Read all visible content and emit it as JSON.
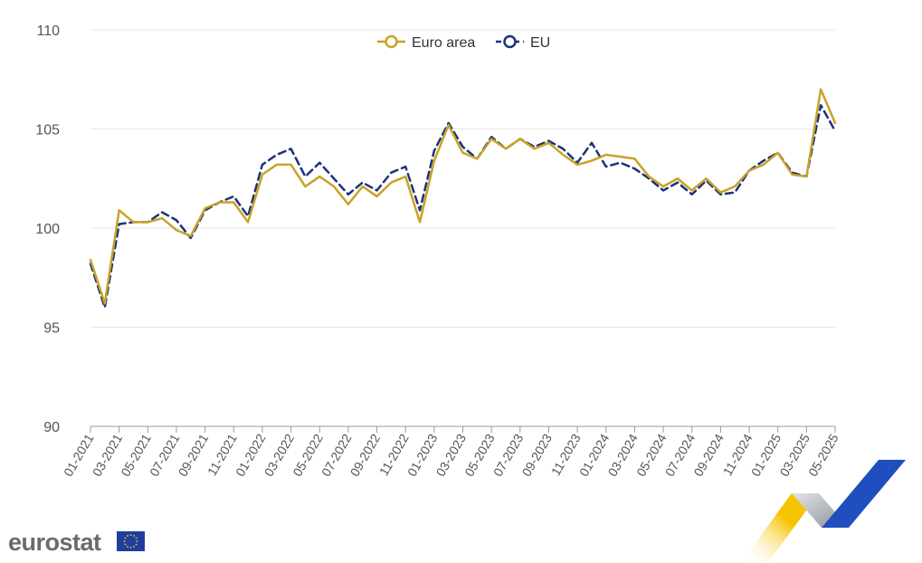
{
  "chart_data": {
    "type": "line",
    "x": [
      "01-2021",
      "02-2021",
      "03-2021",
      "04-2021",
      "05-2021",
      "06-2021",
      "07-2021",
      "08-2021",
      "09-2021",
      "10-2021",
      "11-2021",
      "12-2021",
      "01-2022",
      "02-2022",
      "03-2022",
      "04-2022",
      "05-2022",
      "06-2022",
      "07-2022",
      "08-2022",
      "09-2022",
      "10-2022",
      "11-2022",
      "12-2022",
      "01-2023",
      "02-2023",
      "03-2023",
      "04-2023",
      "05-2023",
      "06-2023",
      "07-2023",
      "08-2023",
      "09-2023",
      "10-2023",
      "11-2023",
      "12-2023",
      "01-2024",
      "02-2024",
      "03-2024",
      "04-2024",
      "05-2024",
      "06-2024",
      "07-2024",
      "08-2024",
      "09-2024",
      "10-2024",
      "11-2024",
      "12-2024",
      "01-2025",
      "02-2025",
      "03-2025",
      "04-2025",
      "05-2025"
    ],
    "x_tick_labels": [
      "01-2021",
      "03-2021",
      "05-2021",
      "07-2021",
      "09-2021",
      "11-2021",
      "01-2022",
      "03-2022",
      "05-2022",
      "07-2022",
      "09-2022",
      "11-2022",
      "01-2023",
      "03-2023",
      "05-2023",
      "07-2023",
      "09-2023",
      "11-2023",
      "01-2024",
      "03-2024",
      "05-2024",
      "07-2024",
      "09-2024",
      "11-2024",
      "01-2025",
      "03-2025",
      "05-2025"
    ],
    "y_ticks": [
      90,
      95,
      100,
      105,
      110
    ],
    "ylim": [
      90,
      110
    ],
    "grid": "horizontal",
    "legend": "top-center",
    "series": [
      {
        "name": "Euro area",
        "color": "#c9a227",
        "style": "solid",
        "values": [
          98.4,
          96.2,
          100.9,
          100.3,
          100.3,
          100.5,
          99.9,
          99.6,
          101.0,
          101.3,
          101.3,
          100.3,
          102.7,
          103.2,
          103.2,
          102.1,
          102.6,
          102.1,
          101.2,
          102.1,
          101.6,
          102.3,
          102.6,
          100.3,
          103.4,
          105.2,
          103.8,
          103.5,
          104.5,
          104.0,
          104.5,
          104.0,
          104.3,
          103.7,
          103.2,
          103.4,
          103.7,
          103.6,
          103.5,
          102.6,
          102.1,
          102.5,
          101.9,
          102.5,
          101.8,
          102.1,
          102.9,
          103.2,
          103.8,
          102.7,
          102.6,
          107.0,
          105.3
        ]
      },
      {
        "name": "EU",
        "color": "#1a3478",
        "style": "dashed",
        "values": [
          98.2,
          96.0,
          100.2,
          100.3,
          100.3,
          100.8,
          100.4,
          99.5,
          100.9,
          101.3,
          101.6,
          100.6,
          103.2,
          103.7,
          104.0,
          102.6,
          103.3,
          102.5,
          101.7,
          102.3,
          101.9,
          102.8,
          103.1,
          100.9,
          103.9,
          105.3,
          104.1,
          103.5,
          104.6,
          104.0,
          104.5,
          104.1,
          104.4,
          104.0,
          103.3,
          104.3,
          103.1,
          103.3,
          103.0,
          102.5,
          101.9,
          102.3,
          101.7,
          102.4,
          101.7,
          101.8,
          102.9,
          103.4,
          103.8,
          102.8,
          102.6,
          106.2,
          104.9
        ]
      }
    ]
  },
  "branding": {
    "logo_text": "eurostat",
    "flag_color": "#1f3f9f",
    "star_color": "#ffcc00",
    "ribbon_colors": [
      "#f5c400",
      "#9ea3a8",
      "#1f4fbf"
    ]
  }
}
